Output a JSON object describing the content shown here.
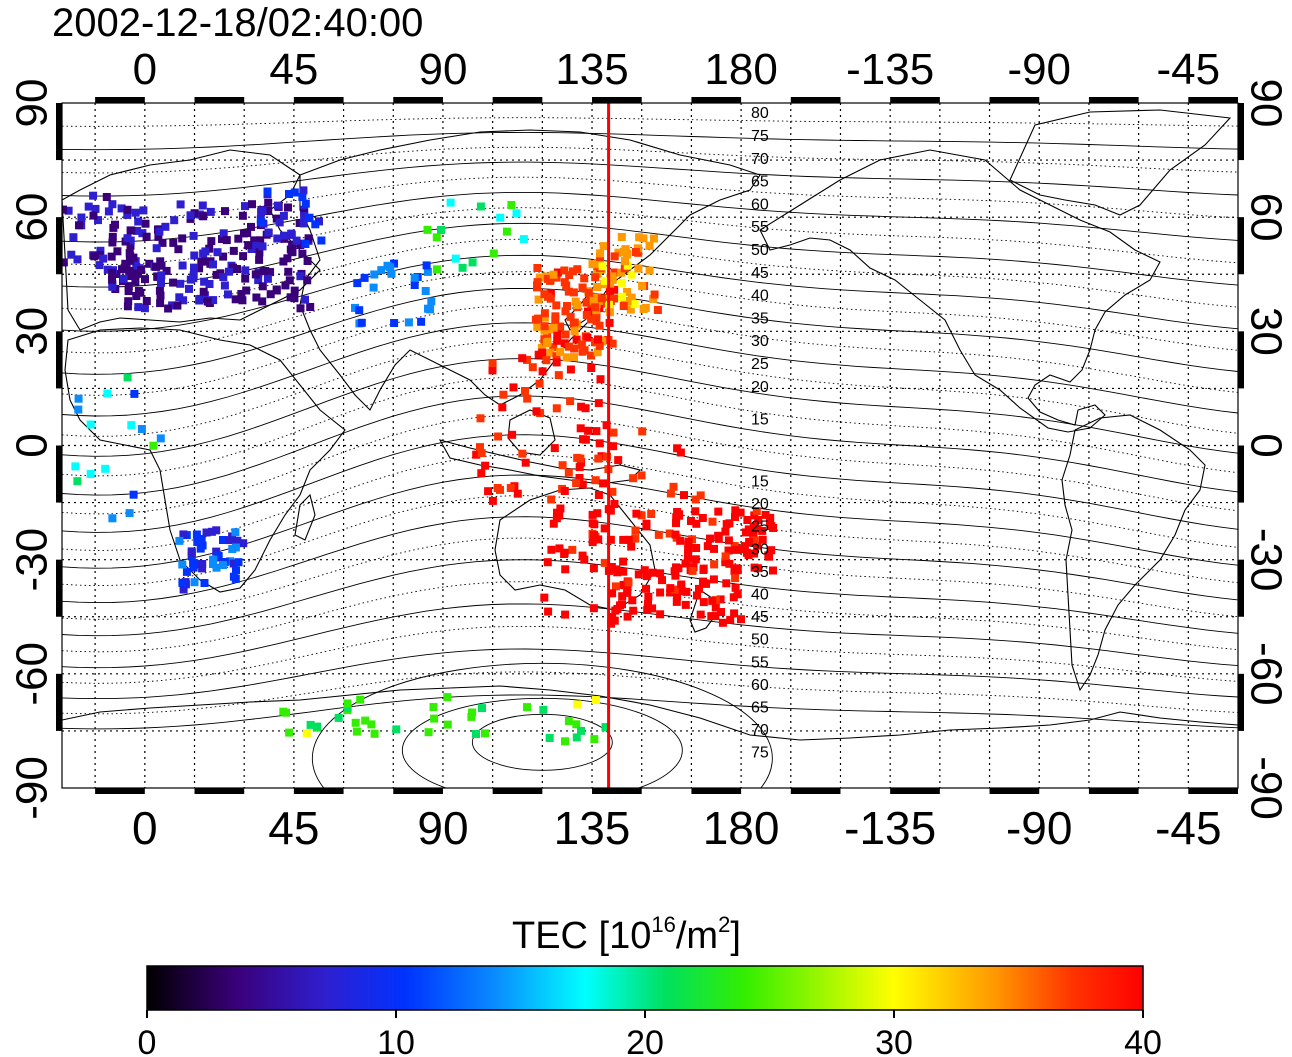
{
  "title": "2002-12-18/02:40:00",
  "map": {
    "lon_ticks_top": [
      "0",
      "45",
      "90",
      "135",
      "180",
      "-135",
      "-90",
      "-45"
    ],
    "lon_ticks_bottom": [
      "0",
      "45",
      "90",
      "135",
      "180",
      "-135",
      "-90",
      "-45"
    ],
    "lat_ticks_left": [
      "90",
      "60",
      "30",
      "0",
      "-30",
      "-60",
      "-90"
    ],
    "lat_ticks_right": [
      "90",
      "60",
      "30",
      "0",
      "-30",
      "-60",
      "-90"
    ],
    "contour_labels_north": [
      "80",
      "75",
      "70",
      "65",
      "60",
      "55",
      "50",
      "45",
      "40",
      "35",
      "30",
      "25",
      "20",
      "15"
    ],
    "contour_labels_south": [
      "15",
      "20",
      "25",
      "30",
      "35",
      "40",
      "45",
      "50",
      "55",
      "60",
      "65",
      "70",
      "75"
    ],
    "reference_meridian_lon": 140,
    "reference_line_color": "#ff0000",
    "lon_range": [
      -25,
      330
    ],
    "lat_range": [
      -90,
      90
    ]
  },
  "colorbar": {
    "title_prefix": "TEC  [10",
    "title_sup1": "16",
    "title_mid": "/m",
    "title_sup2": "2",
    "title_suffix": "]",
    "tick_labels": [
      "0",
      "10",
      "20",
      "30",
      "40"
    ],
    "range": [
      0,
      40
    ],
    "colormap": [
      "#000000",
      "#3a007a",
      "#2e1fd0",
      "#0033ff",
      "#0a8cff",
      "#00ffff",
      "#00e060",
      "#33ee00",
      "#ffff00",
      "#ff9900",
      "#ff3300",
      "#ff0000"
    ]
  }
}
